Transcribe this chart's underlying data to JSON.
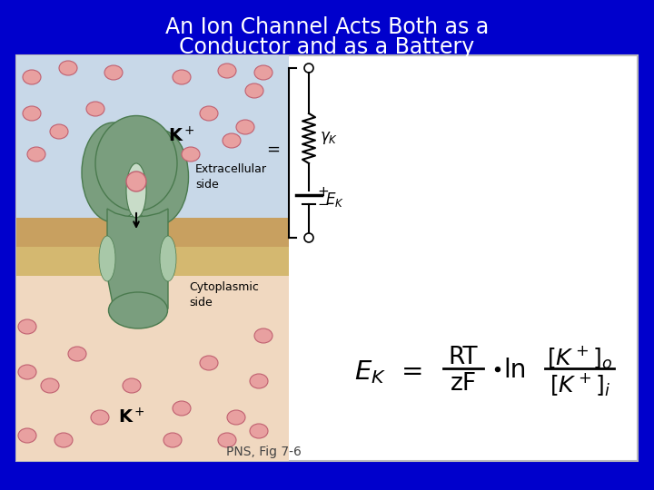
{
  "bg_color": "#0000CC",
  "title_line1": "An Ion Channel Acts Both as a",
  "title_line2": "Conductor and as a Battery",
  "title_color": "#FFFFFF",
  "title_fontsize": 17,
  "panel_bg": "#FFFFFF",
  "extracell_color": "#C8D8E8",
  "membrane_top_color": "#C8A060",
  "membrane_bot_color": "#D4B870",
  "cytoplasm_color": "#F0D8C0",
  "channel_color": "#7A9E7E",
  "channel_edge": "#4A7A4E",
  "pore_color": "#C8DCC8",
  "ion_color": "#E8A0A0",
  "ion_edge": "#C06070",
  "caption": "PNS, Fig 7-6",
  "caption_color": "#444444",
  "caption_fontsize": 10
}
